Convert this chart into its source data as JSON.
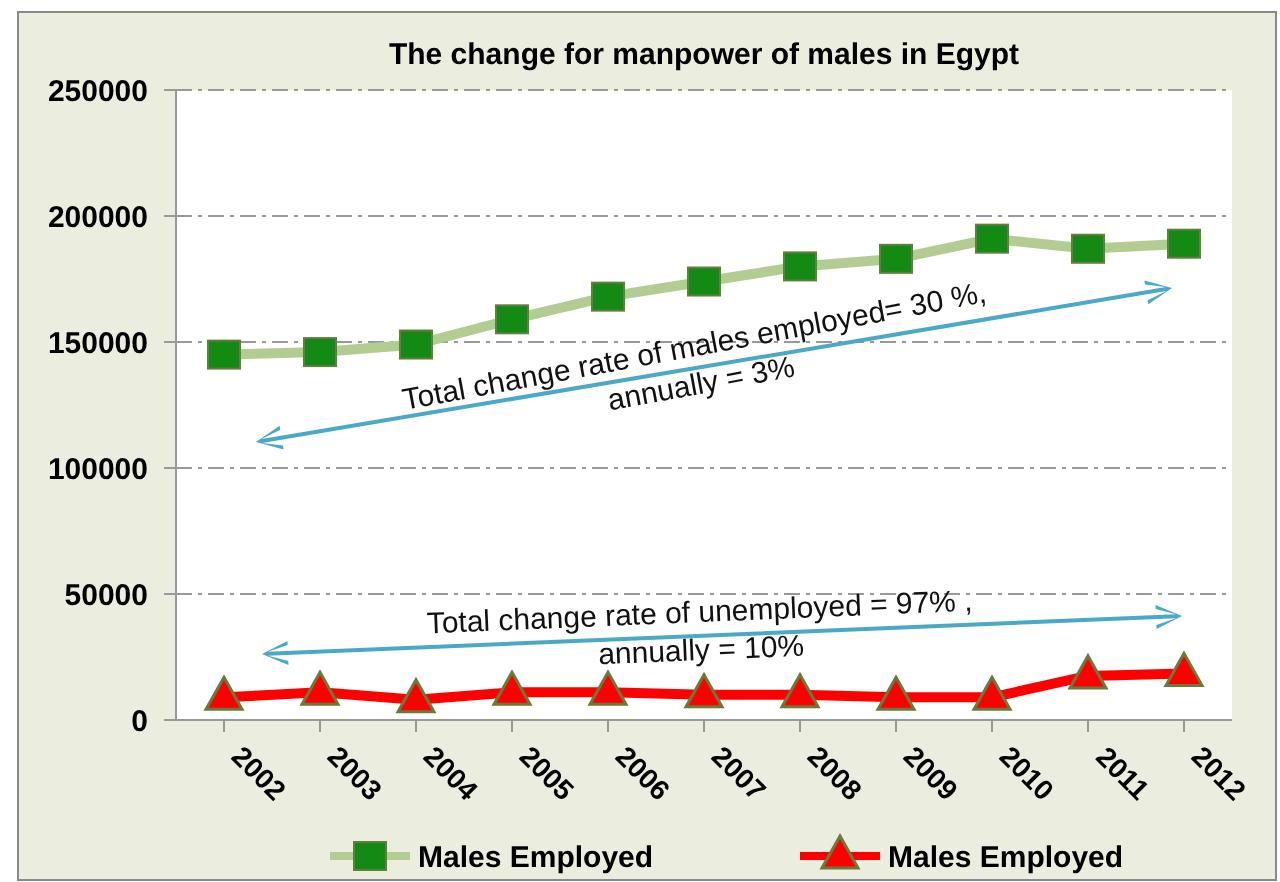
{
  "chart_data": {
    "type": "line",
    "title": "The change for manpower of males in Egypt",
    "categories": [
      "2002",
      "2003",
      "2004",
      "2005",
      "2006",
      "2007",
      "2008",
      "2009",
      "2010",
      "2011",
      "2012"
    ],
    "series": [
      {
        "name": "Males Employed",
        "color": "#b3cc92",
        "marker": "square",
        "values": [
          145000,
          146000,
          149000,
          159000,
          168000,
          174000,
          180000,
          183000,
          191000,
          187000,
          189000
        ]
      },
      {
        "name": "Males Employed",
        "color": "#ff0000",
        "marker": "triangle",
        "values": [
          9000,
          11000,
          8000,
          11000,
          11000,
          10000,
          10000,
          9000,
          9000,
          17500,
          18500
        ]
      }
    ],
    "ylim": [
      0,
      250000
    ],
    "yticks": [
      0,
      50000,
      100000,
      150000,
      200000,
      250000
    ],
    "grid": "y",
    "legend": "bottom",
    "annotations": [
      "Total change rate of males employed=  30 %,\nannually = 3%",
      "Total change rate of unemployed =  97% ,\nannually = 10%"
    ]
  }
}
